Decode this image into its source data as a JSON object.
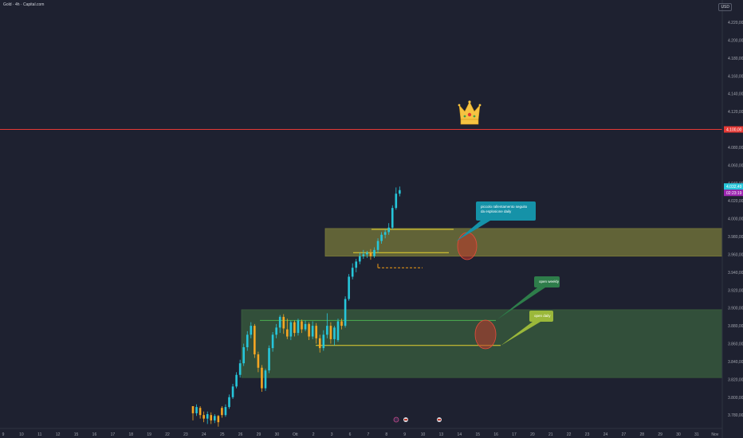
{
  "header": {
    "symbol_title": "Gold · 4h · Capital.com"
  },
  "currency_label": "USD",
  "chart_data": {
    "type": "candlestick",
    "title": "Gold · 4h · Capital.com",
    "y_unit": "USD",
    "ylim": [
      3765,
      4245
    ],
    "y_ticks": [
      "4.220,00",
      "4.200,00",
      "4.180,00",
      "4.160,00",
      "4.140,00",
      "4.120,00",
      "4.100,00",
      "4.080,00",
      "4.060,00",
      "4.040,00",
      "4.020,00",
      "4.000,00",
      "3.980,00",
      "3.960,00",
      "3.940,00",
      "3.920,00",
      "3.900,00",
      "3.880,00",
      "3.860,00",
      "3.840,00",
      "3.820,00",
      "3.800,00",
      "3.780,00"
    ],
    "x_ticks": [
      "9",
      "10",
      "11",
      "12",
      "15",
      "16",
      "17",
      "18",
      "19",
      "22",
      "23",
      "24",
      "25",
      "26",
      "29",
      "30",
      "Ott",
      "2",
      "3",
      "6",
      "7",
      "8",
      "9",
      "10",
      "13",
      "14",
      "15",
      "16",
      "17",
      "20",
      "21",
      "22",
      "23",
      "24",
      "27",
      "28",
      "29",
      "30",
      "31",
      "Nov"
    ],
    "last_price_label": "4.032,49",
    "last_price": 4032.49,
    "countdown_label": "02:23:19",
    "resistance": {
      "price": 4100,
      "label": "4.100,00"
    },
    "candles_ohlc": [
      [
        3790,
        3782,
        3786,
        3774
      ],
      [
        3782,
        3789,
        3792,
        3779
      ],
      [
        3788,
        3780,
        3790,
        3776
      ],
      [
        3780,
        3776,
        3784,
        3772
      ],
      [
        3776,
        3781,
        3784,
        3770
      ],
      [
        3780,
        3774,
        3783,
        3770
      ],
      [
        3774,
        3779,
        3781,
        3771
      ],
      [
        3779,
        3772,
        3780,
        3767
      ],
      [
        3788,
        3780,
        3790,
        3777
      ],
      [
        3780,
        3789,
        3792,
        3778
      ],
      [
        3789,
        3800,
        3803,
        3787
      ],
      [
        3800,
        3812,
        3815,
        3798
      ],
      [
        3812,
        3825,
        3828,
        3810
      ],
      [
        3825,
        3838,
        3842,
        3822
      ],
      [
        3838,
        3856,
        3860,
        3835
      ],
      [
        3856,
        3870,
        3874,
        3852
      ],
      [
        3870,
        3880,
        3884,
        3866
      ],
      [
        3880,
        3848,
        3882,
        3844
      ],
      [
        3848,
        3833,
        3851,
        3828
      ],
      [
        3833,
        3810,
        3836,
        3806
      ],
      [
        3810,
        3830,
        3832,
        3807
      ],
      [
        3830,
        3855,
        3858,
        3827
      ],
      [
        3855,
        3870,
        3873,
        3851
      ],
      [
        3870,
        3878,
        3882,
        3866
      ],
      [
        3878,
        3890,
        3892,
        3872
      ],
      [
        3890,
        3877,
        3893,
        3871
      ],
      [
        3876,
        3868,
        3888,
        3865
      ],
      [
        3868,
        3884,
        3886,
        3864
      ],
      [
        3884,
        3872,
        3886,
        3868
      ],
      [
        3872,
        3886,
        3888,
        3869
      ],
      [
        3885,
        3876,
        3887,
        3872
      ],
      [
        3876,
        3882,
        3886,
        3874
      ],
      [
        3882,
        3868,
        3884,
        3864
      ],
      [
        3868,
        3880,
        3885,
        3865
      ],
      [
        3880,
        3866,
        3883,
        3860
      ],
      [
        3866,
        3855,
        3870,
        3850
      ],
      [
        3855,
        3870,
        3875,
        3852
      ],
      [
        3870,
        3880,
        3894,
        3866
      ],
      [
        3880,
        3865,
        3884,
        3860
      ],
      [
        3865,
        3878,
        3880,
        3858
      ],
      [
        3864,
        3885,
        3888,
        3862
      ],
      [
        3885,
        3880,
        3888,
        3876
      ],
      [
        3880,
        3910,
        3913,
        3878
      ],
      [
        3910,
        3935,
        3938,
        3908
      ],
      [
        3935,
        3945,
        3950,
        3932
      ],
      [
        3945,
        3952,
        3955,
        3940
      ],
      [
        3952,
        3958,
        3962,
        3949
      ],
      [
        3958,
        3960,
        3965,
        3955
      ],
      [
        3960,
        3962,
        3964,
        3956
      ],
      [
        3962,
        3958,
        3966,
        3954
      ],
      [
        3958,
        3965,
        3968,
        3956
      ],
      [
        3965,
        3975,
        3978,
        3962
      ],
      [
        3975,
        3982,
        3985,
        3972
      ],
      [
        3982,
        3985,
        3988,
        3978
      ],
      [
        3985,
        3990,
        3995,
        3982
      ],
      [
        3990,
        4012,
        4015,
        3988
      ],
      [
        4012,
        4028,
        4035,
        4010
      ],
      [
        4028,
        4032,
        4036,
        4025
      ]
    ],
    "zones": [
      {
        "name": "upper-supply-zone",
        "ylim": [
          3958,
          3989
        ],
        "color": "#787a3a"
      },
      {
        "name": "lower-demand-zone",
        "ylim": [
          3822,
          3898
        ],
        "color": "#3a5f3e"
      }
    ],
    "levels": [
      {
        "name": "weekly-open-line",
        "price": 3886,
        "color": "#4caf50"
      },
      {
        "name": "daily-open-line",
        "price": 3858,
        "color": "#e6d230"
      },
      {
        "name": "short-yellow-upper",
        "price": 3988,
        "color": "#e6d230"
      },
      {
        "name": "short-yellow-lower",
        "price": 3962,
        "color": "#e6d230"
      },
      {
        "name": "dashed-orange-level",
        "price": 3945,
        "color": "#f39c12"
      }
    ],
    "annotations": [
      {
        "name": "callout-slowdown",
        "text_lines": [
          "piccolo rallentamento seguito",
          "da esplosione daily"
        ],
        "color": "#1592a8"
      },
      {
        "name": "callout-open-weekly",
        "text_lines": [
          "open weekly"
        ],
        "color": "#2e7d4a"
      },
      {
        "name": "callout-open-daily",
        "text_lines": [
          "open daily"
        ],
        "color": "#9bb83a"
      }
    ],
    "colors": {
      "bull": "#26c6da",
      "bear": "#f5a623",
      "background": "#1e2130",
      "resistance": "#e53935",
      "price_tag": "#26c6da",
      "countdown_tag": "#9c27b0"
    },
    "icons": [
      "crown-icon",
      "event-marker-icon"
    ]
  }
}
